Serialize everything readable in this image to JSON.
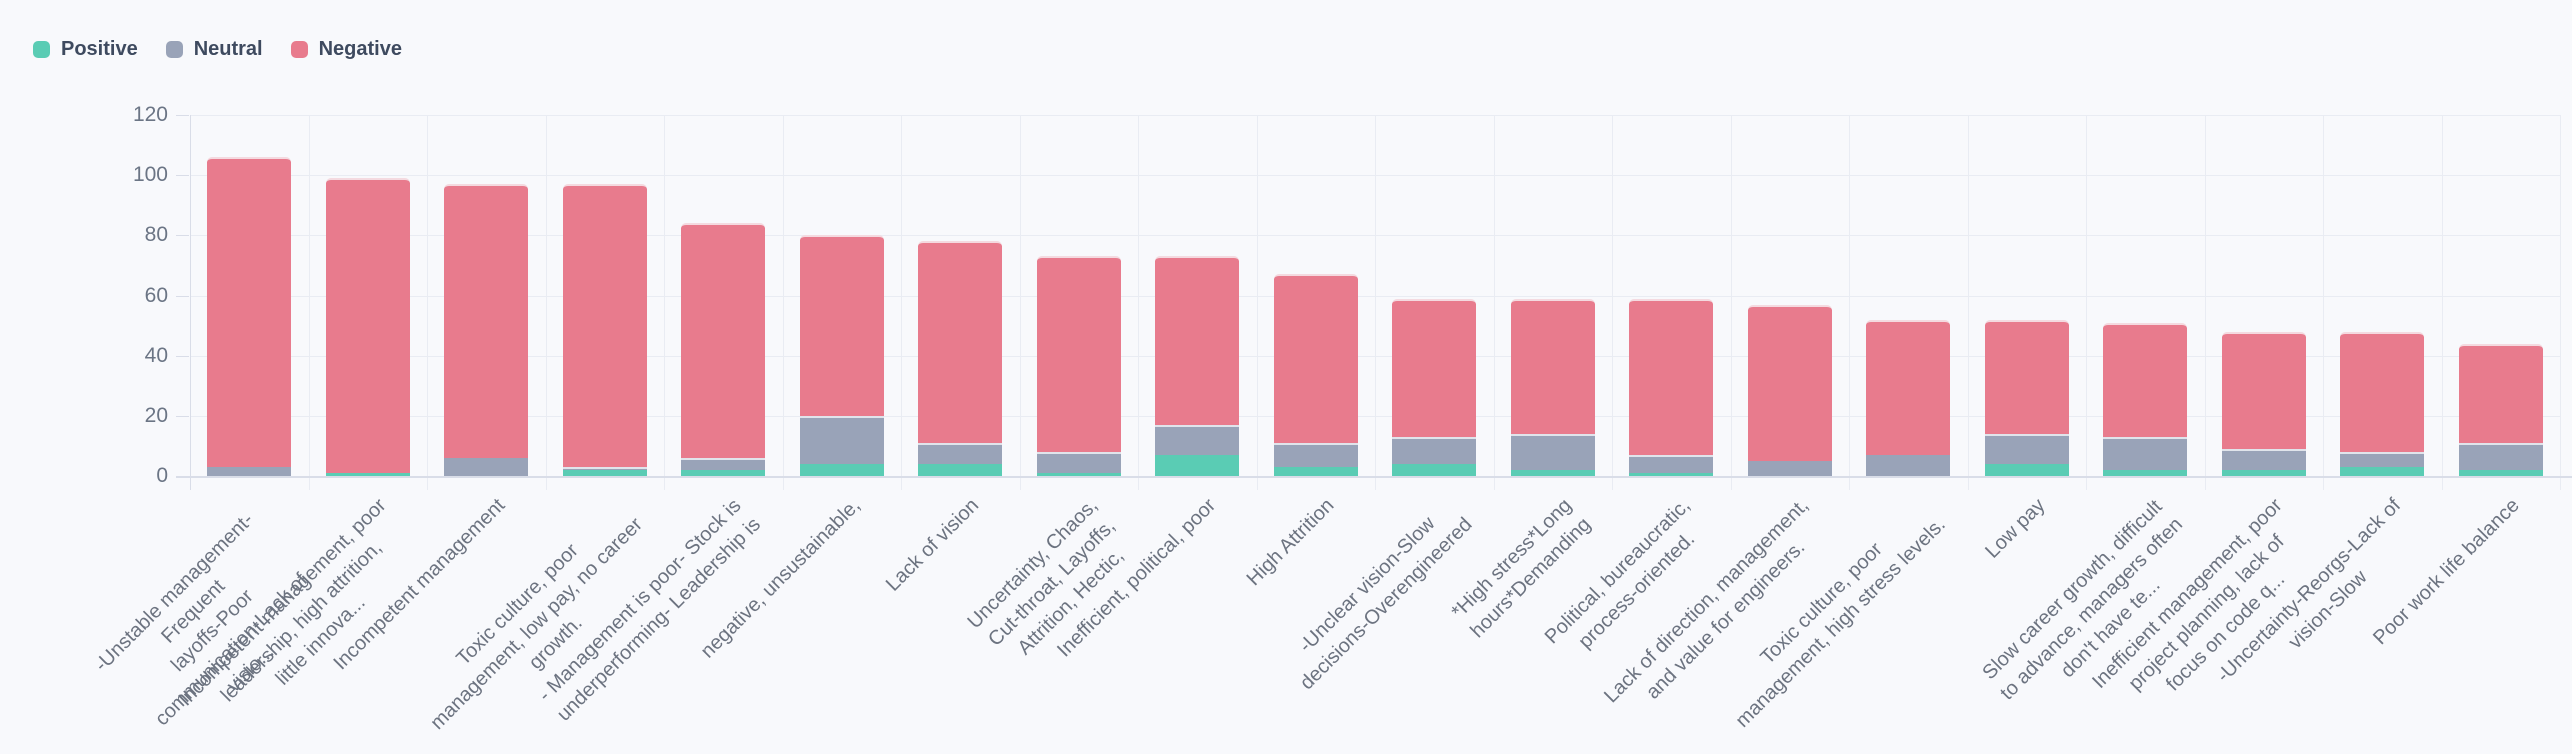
{
  "legend": {
    "items": [
      {
        "label": "Positive",
        "color": "#5accb4"
      },
      {
        "label": "Neutral",
        "color": "#99a3b8"
      },
      {
        "label": "Negative",
        "color": "#e87b8d"
      }
    ]
  },
  "style": {
    "background": "#f8f9fc",
    "gridline_color": "#e9ecf3",
    "axis_line_color": "#d9dde8",
    "y_label_color": "#6b7585",
    "x_label_color": "#6c7380",
    "legend_text_color": "#3e4a5f"
  },
  "chart_data": {
    "type": "bar",
    "stacked": true,
    "title": "",
    "xlabel": "",
    "ylabel": "",
    "ylim": [
      0,
      120
    ],
    "yticks": [
      0,
      20,
      40,
      60,
      80,
      100,
      120
    ],
    "grid": true,
    "legend_position": "top-left",
    "categories": [
      "-Unstable management-Frequent\nlayoffs-Poor\ncommunication-Lack of visio...",
      "Incompetent management, poor\nleadership, high attrition,\nlittle innova...",
      "Incompetent management",
      "Toxic culture, poor\nmanagement, low pay, no career\ngrowth.",
      "- Management is poor- Stock is\nunderperforming- Leadership is",
      "negative, unsustainable,",
      "Lack of vision",
      "Uncertainty, Chaos,\nCut-throat, Layoffs,\nAttrition, Hectic,",
      "Inefficient, political, poor",
      "High Attrition",
      "-Unclear vision-Slow\ndecisions-Overengineered",
      "*High stress*Long\nhours*Demanding",
      "Political, bureaucratic,\nprocess-oriented.",
      "Lack of direction, management,\nand value for engineers.",
      "Toxic culture, poor\nmanagement, high stress levels.",
      "Low pay",
      "Slow career growth, difficult\nto advance, managers often\ndon't have te...",
      "Inefficient management, poor\nproject planning, lack of\nfocus on code q...",
      "-Uncertainty-Reorgs-Lack of\nvision-Slow",
      "Poor work life balance"
    ],
    "series": [
      {
        "name": "Positive",
        "color": "#5accb4",
        "values": [
          0,
          1,
          0,
          2,
          2,
          4,
          4,
          1,
          7,
          3,
          4,
          2,
          1,
          0,
          0,
          4,
          2,
          2,
          3,
          2
        ]
      },
      {
        "name": "Neutral",
        "color": "#99a3b8",
        "values": [
          3,
          0,
          6,
          1,
          4,
          16,
          7,
          7,
          10,
          8,
          9,
          12,
          6,
          5,
          7,
          10,
          11,
          7,
          5,
          9
        ]
      },
      {
        "name": "Negative",
        "color": "#e87b8d",
        "values": [
          103,
          98,
          91,
          94,
          78,
          60,
          67,
          65,
          56,
          56,
          46,
          45,
          52,
          52,
          45,
          38,
          38,
          39,
          40,
          33
        ]
      }
    ]
  }
}
